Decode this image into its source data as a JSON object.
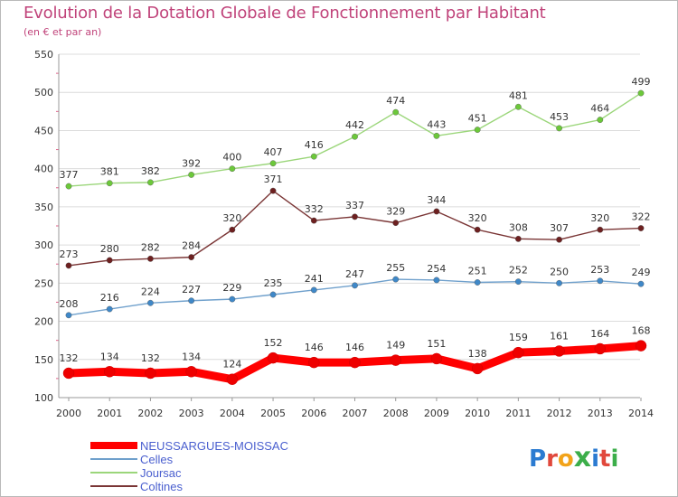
{
  "header": {
    "title": "Evolution de la Dotation Globale de Fonctionnement par Habitant",
    "subtitle": "(en € et par an)"
  },
  "logo": {
    "text": "Proxiti",
    "letter_colors": [
      "#2b7bd1",
      "#e1483c",
      "#f2a31a",
      "#3cae4a",
      "#2b7bd1",
      "#e1483c",
      "#3cae4a"
    ]
  },
  "chart_data": {
    "type": "line",
    "x": [
      "2000",
      "2001",
      "2002",
      "2003",
      "2004",
      "2005",
      "2006",
      "2007",
      "2008",
      "2009",
      "2010",
      "2011",
      "2012",
      "2013",
      "2014"
    ],
    "ylim": [
      100,
      550
    ],
    "yticks": [
      100,
      150,
      200,
      250,
      300,
      350,
      400,
      450,
      500,
      550
    ],
    "grid": "horizontal",
    "legend_position": "bottom-left",
    "series": [
      {
        "name": "Joursac",
        "color": "#9bd67a",
        "marker": "#6cc83a",
        "values": [
          377,
          381,
          382,
          392,
          400,
          407,
          416,
          442,
          474,
          443,
          451,
          481,
          453,
          464,
          499
        ]
      },
      {
        "name": "Coltines",
        "color": "#7a3535",
        "marker": "#6d2020",
        "values": [
          273,
          280,
          282,
          284,
          320,
          371,
          332,
          337,
          329,
          344,
          320,
          308,
          307,
          320,
          322
        ]
      },
      {
        "name": "Celles",
        "color": "#6fa0cc",
        "marker": "#3f88c8",
        "values": [
          208,
          216,
          224,
          227,
          229,
          235,
          241,
          247,
          255,
          254,
          251,
          252,
          250,
          253,
          249
        ]
      },
      {
        "name": "NEUSSARGUES-MOISSAC",
        "color": "#ff0000",
        "marker": "#ee0000",
        "values": [
          132,
          134,
          132,
          134,
          124,
          152,
          146,
          146,
          149,
          151,
          138,
          159,
          161,
          164,
          168
        ]
      }
    ],
    "legend_order": [
      "NEUSSARGUES-MOISSAC",
      "Celles",
      "Joursac",
      "Coltines"
    ]
  }
}
